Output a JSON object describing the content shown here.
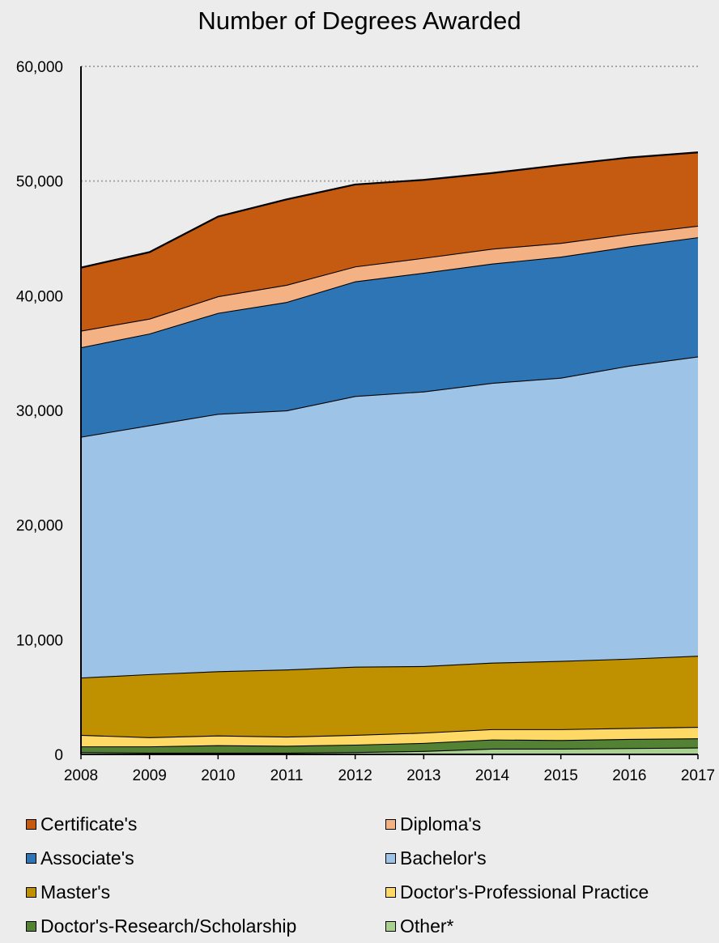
{
  "chart_data": {
    "type": "area",
    "stacked": true,
    "title": "Number of Degrees Awarded",
    "xlabel": "",
    "ylabel": "",
    "x": [
      "2008",
      "2009",
      "2010",
      "2011",
      "2012",
      "2013",
      "2014",
      "2015",
      "2016",
      "2017"
    ],
    "ylim": [
      0,
      60000
    ],
    "yticks": [
      0,
      10000,
      20000,
      30000,
      40000,
      50000,
      60000
    ],
    "ytick_labels": [
      "0",
      "10,000",
      "20,000",
      "30,000",
      "40,000",
      "50,000",
      "60,000"
    ],
    "grid": "horizontal dotted at 50,000 and 60,000",
    "legend_position": "bottom",
    "series": [
      {
        "name": "Other*",
        "color": "#a9d18e",
        "values": [
          200,
          150,
          150,
          150,
          200,
          300,
          500,
          500,
          550,
          600
        ]
      },
      {
        "name": "Doctor's-Research/Scholarship",
        "color": "#548235",
        "values": [
          500,
          550,
          650,
          600,
          650,
          700,
          800,
          750,
          800,
          800
        ]
      },
      {
        "name": "Doctor's-Professional Practice",
        "color": "#ffd966",
        "values": [
          1000,
          800,
          850,
          800,
          850,
          900,
          900,
          950,
          950,
          1000
        ]
      },
      {
        "name": "Master's",
        "color": "#bf9000",
        "values": [
          5000,
          5500,
          5600,
          5850,
          5950,
          5800,
          5800,
          5950,
          6050,
          6200
        ]
      },
      {
        "name": "Bachelor's",
        "color": "#9dc3e6",
        "values": [
          21000,
          21700,
          22450,
          22600,
          23600,
          23950,
          24400,
          24700,
          25550,
          26100
        ]
      },
      {
        "name": "Associate's",
        "color": "#2e75b6",
        "values": [
          7800,
          8000,
          8800,
          9450,
          10000,
          10350,
          10400,
          10550,
          10400,
          10400
        ]
      },
      {
        "name": "Diploma's",
        "color": "#f4b183",
        "values": [
          1450,
          1300,
          1450,
          1500,
          1300,
          1300,
          1300,
          1200,
          1100,
          1000
        ]
      },
      {
        "name": "Certificate's",
        "color": "#c55a11",
        "values": [
          5500,
          5800,
          6950,
          7450,
          7150,
          6800,
          6600,
          6800,
          6650,
          6400
        ]
      }
    ],
    "legend": [
      {
        "label": "Certificate's",
        "color": "#c55a11"
      },
      {
        "label": "Diploma's",
        "color": "#f4b183"
      },
      {
        "label": "Associate's",
        "color": "#2e75b6"
      },
      {
        "label": "Bachelor's",
        "color": "#9dc3e6"
      },
      {
        "label": "Master's",
        "color": "#bf9000"
      },
      {
        "label": "Doctor's-Professional Practice",
        "color": "#ffd966"
      },
      {
        "label": "Doctor's-Research/Scholarship",
        "color": "#548235"
      },
      {
        "label": "Other*",
        "color": "#a9d18e"
      }
    ]
  }
}
